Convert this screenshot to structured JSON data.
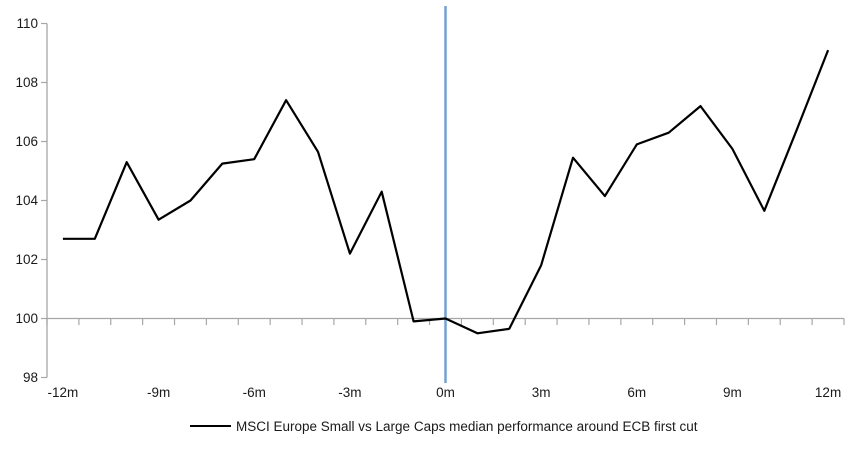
{
  "chart_data": {
    "type": "line",
    "title": "",
    "xlabel": "",
    "ylabel": "",
    "x_months": [
      -12,
      -11,
      -10,
      -9,
      -8,
      -7,
      -6,
      -5,
      -4,
      -3,
      -2,
      -1,
      0,
      1,
      2,
      3,
      4,
      5,
      6,
      7,
      8,
      9,
      10,
      11,
      12
    ],
    "series": [
      {
        "name": "MSCI Europe Small vs Large Caps median performance around ECB first cut",
        "color": "#000000",
        "values": [
          102.7,
          102.7,
          105.3,
          103.35,
          104.0,
          105.25,
          105.4,
          107.4,
          105.65,
          102.2,
          104.3,
          99.9,
          100.0,
          99.5,
          99.65,
          101.8,
          105.45,
          104.15,
          105.9,
          106.3,
          107.2,
          105.75,
          103.65,
          106.35,
          109.1
        ]
      }
    ],
    "ylim": [
      98,
      110
    ],
    "yticks": [
      98,
      100,
      102,
      104,
      106,
      108,
      110
    ],
    "xtick_label_step": 3,
    "xticklabels": [
      "-12m",
      "-9m",
      "-6m",
      "-3m",
      "0m",
      "3m",
      "6m",
      "9m",
      "12m"
    ],
    "x_axis_position": 100,
    "event_line_month": 0,
    "grid": false,
    "legend_position": "bottom-center"
  },
  "legend": {
    "label": "MSCI Europe Small vs Large Caps median performance around ECB first cut"
  },
  "colors": {
    "series_line": "#000000",
    "event_line": "#72A3CF",
    "axis_line": "#A6A6A6",
    "tick": "#A6A6A6",
    "text": "#1A1A1A",
    "background": "#FFFFFF"
  }
}
